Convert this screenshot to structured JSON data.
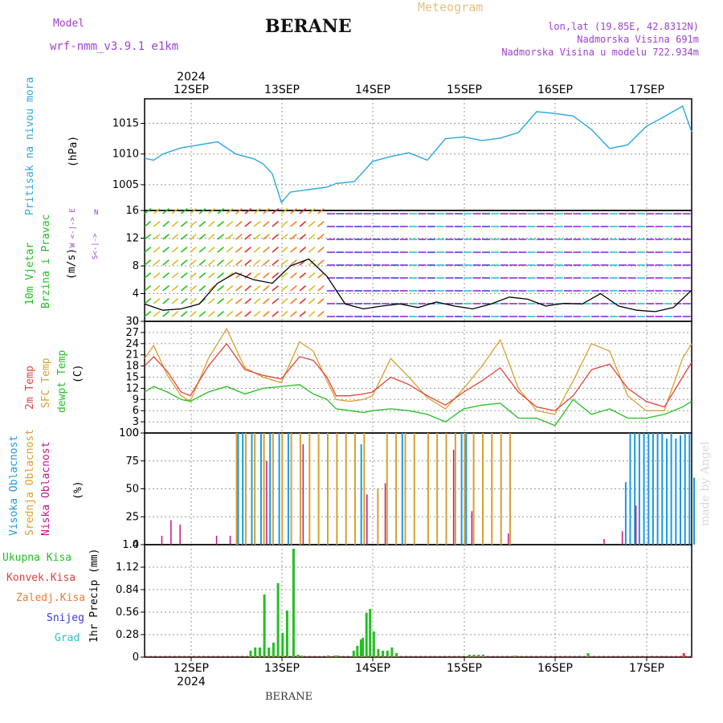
{
  "header": {
    "model_label": "Model",
    "model_name": "wrf-nmm_v3.9.1 e1km",
    "title": "BERANE",
    "meteogram_label": "Meteogram",
    "lonlat": "lon,lat (19.85E, 42.8312N)",
    "elevation": "Nadmorska Visina 691m",
    "model_elevation": "Nadmorska Visina u modelu 722.934m",
    "footer_title": "BERANE",
    "watermark": "made by Angel"
  },
  "colors": {
    "pressure": "#29a8e0",
    "temp2m": "#e0443c",
    "sfc": "#d8a030",
    "dewpt": "#22c022",
    "high_cloud": "#1a9ae0",
    "mid_cloud": "#d8a030",
    "low_cloud": "#c4148c",
    "total_precip": "#22c022",
    "conv_precip": "#e04040",
    "frozen": "#f07a30",
    "snow": "#3a3ad8",
    "graupel": "#22c8c0",
    "dark_label": "#a040d0"
  },
  "time_axis": {
    "year": "2024",
    "labels": [
      "12SEP",
      "13SEP",
      "14SEP",
      "15SEP",
      "16SEP",
      "17SEP"
    ]
  },
  "panels": {
    "pressure": {
      "label": "Pritisak na nivou mora",
      "unit": "(hPa)"
    },
    "wind": {
      "label1": "10m Vjetar",
      "label2": "Brzina i Pravac",
      "unit": "(m/s)",
      "compass_n": "N",
      "compass_ws": "W  <-|-> E",
      "compass_s": "S<-|->"
    },
    "temp": {
      "label1": "2m Temp",
      "label2": "SFC Temp",
      "label3": "dewpt Temp",
      "unit": "(C)"
    },
    "cloud": {
      "label1": "Visoka Oblacnost",
      "label2": "Srednja Oblacnost",
      "label3": "Niska Oblacnost",
      "unit": "(%)"
    },
    "precip": {
      "unit": "1hr Precip (mm)",
      "legend": [
        "Ukupna Kisa",
        "Konvek.Kisa",
        "Zaledj.Kisa",
        "Snijeg",
        "Grad"
      ]
    }
  },
  "chart_data": [
    {
      "type": "line",
      "title": "Pritisak na nivou mora",
      "ylabel": "(hPa)",
      "ylim": [
        1000.8,
        1019
      ],
      "yticks": [
        1005,
        1010,
        1015
      ],
      "x_days": [
        0,
        0.1,
        0.2,
        0.4,
        0.6,
        0.8,
        1.0,
        1.2,
        1.3,
        1.4,
        1.5,
        1.6,
        1.8,
        2.0,
        2.1,
        2.3,
        2.5,
        2.7,
        2.9,
        3.1,
        3.3,
        3.5,
        3.7,
        3.9,
        4.1,
        4.3,
        4.5,
        4.7,
        4.9,
        5.1,
        5.3,
        5.5,
        5.7,
        5.9,
        6.0
      ],
      "series": [
        {
          "name": "Pritisak na nivou mora",
          "values": [
            1009.3,
            1009.0,
            1010.0,
            1011.0,
            1011.5,
            1012.0,
            1010.0,
            1009.2,
            1008.4,
            1006.8,
            1002.1,
            1003.8,
            1004.2,
            1004.6,
            1005.2,
            1005.5,
            1008.8,
            1009.6,
            1010.2,
            1009.0,
            1012.5,
            1012.8,
            1012.2,
            1012.6,
            1013.5,
            1016.9,
            1016.6,
            1016.2,
            1014.0,
            1010.9,
            1011.5,
            1014.5,
            1016.1,
            1017.8,
            1013.6
          ]
        }
      ]
    },
    {
      "type": "line",
      "title": "10m Vjetar Brzina i Pravac",
      "ylabel": "(m/s)",
      "ylim": [
        0,
        16
      ],
      "yticks": [
        0,
        4,
        8,
        12,
        16
      ],
      "x_days": [
        0,
        0.2,
        0.4,
        0.6,
        0.8,
        1.0,
        1.2,
        1.4,
        1.6,
        1.8,
        2.0,
        2.2,
        2.4,
        2.6,
        2.8,
        3.0,
        3.2,
        3.4,
        3.6,
        3.8,
        4.0,
        4.2,
        4.4,
        4.6,
        4.8,
        5.0,
        5.2,
        5.4,
        5.6,
        5.8,
        6.0
      ],
      "series": [
        {
          "name": "10m Vjetar",
          "values": [
            2.5,
            1.6,
            1.8,
            2.5,
            5.5,
            7.0,
            6.0,
            5.5,
            8.0,
            9.0,
            6.5,
            2.5,
            1.8,
            2.2,
            2.5,
            2.0,
            2.8,
            2.2,
            1.8,
            2.5,
            3.5,
            3.2,
            2.2,
            2.6,
            2.5,
            4.0,
            2.2,
            1.6,
            1.4,
            2.0,
            4.5
          ]
        }
      ]
    },
    {
      "type": "line",
      "title": "2m Temp / SFC Temp / dewpt Temp",
      "ylabel": "(C)",
      "ylim": [
        0,
        30
      ],
      "yticks": [
        0,
        3,
        6,
        9,
        12,
        15,
        18,
        21,
        24,
        27,
        30
      ],
      "x_days": [
        0,
        0.1,
        0.25,
        0.4,
        0.5,
        0.7,
        0.9,
        1.1,
        1.3,
        1.5,
        1.7,
        1.85,
        2.0,
        2.1,
        2.25,
        2.4,
        2.5,
        2.7,
        2.9,
        3.1,
        3.3,
        3.5,
        3.7,
        3.9,
        4.1,
        4.3,
        4.5,
        4.7,
        4.9,
        5.1,
        5.3,
        5.5,
        5.7,
        5.9,
        6.0
      ],
      "series": [
        {
          "name": "2m Temp",
          "values": [
            18,
            20.5,
            16.5,
            11,
            10,
            18,
            24,
            17,
            15.5,
            14.5,
            20.5,
            19.5,
            15,
            10,
            10,
            10.5,
            11,
            15,
            13,
            10,
            7.5,
            11,
            14,
            17.5,
            11,
            7,
            6,
            10,
            17,
            18.5,
            12,
            8.5,
            7,
            15,
            19
          ]
        },
        {
          "name": "SFC Temp",
          "values": [
            20,
            23.5,
            15.5,
            10,
            8.5,
            20,
            28,
            17.5,
            15,
            13.5,
            24.5,
            22,
            14,
            9,
            8.5,
            9,
            10,
            20,
            15,
            9.5,
            6.5,
            12,
            18,
            25,
            12,
            6,
            5,
            14,
            24,
            22,
            10,
            6,
            6,
            20,
            24
          ]
        },
        {
          "name": "dewpt Temp",
          "values": [
            11,
            12.5,
            11,
            9,
            8.5,
            11,
            12.5,
            10.5,
            12,
            12.5,
            13,
            10.5,
            9,
            6.5,
            6,
            5.5,
            6,
            6.5,
            6,
            5,
            3,
            6.5,
            7.5,
            8,
            4,
            4,
            2,
            9,
            5,
            6.5,
            4,
            4,
            5,
            7,
            8.5
          ]
        }
      ]
    },
    {
      "type": "bar",
      "title": "Visoka / Srednja / Niska Oblacnost",
      "ylabel": "(%)",
      "ylim": [
        0,
        100
      ],
      "yticks": [
        0,
        25,
        50,
        75,
        100
      ],
      "series": [
        {
          "name": "Visoka Oblacnost",
          "x_days": [
            1.0,
            1.05,
            1.15,
            1.25,
            1.35,
            1.45,
            1.55,
            2.35,
            2.8,
            3.45,
            3.5,
            5.25,
            5.3,
            5.35,
            5.4,
            5.45,
            5.5,
            5.55,
            5.6,
            5.65,
            5.7,
            5.75,
            5.8,
            5.85,
            5.9,
            5.95,
            6.0
          ],
          "values": [
            100,
            100,
            100,
            100,
            100,
            100,
            100,
            90,
            100,
            100,
            100,
            56,
            100,
            100,
            100,
            100,
            100,
            100,
            100,
            100,
            95,
            100,
            95,
            98,
            100,
            100,
            60
          ]
        },
        {
          "name": "Srednja Oblacnost",
          "x_days": [
            1.0,
            1.1,
            1.2,
            1.3,
            1.4,
            1.5,
            1.6,
            1.7,
            1.8,
            1.9,
            2.0,
            2.1,
            2.2,
            2.3,
            2.4,
            2.55,
            2.65,
            2.75,
            2.85,
            2.95,
            3.1,
            3.2,
            3.3,
            3.4,
            3.5,
            3.6,
            3.7,
            3.8,
            3.9,
            4.0
          ],
          "values": [
            100,
            100,
            100,
            100,
            100,
            100,
            100,
            100,
            100,
            100,
            100,
            100,
            100,
            100,
            100,
            50,
            100,
            100,
            100,
            100,
            100,
            100,
            100,
            100,
            100,
            100,
            100,
            100,
            100,
            100
          ]
        },
        {
          "name": "Niska Oblacnost",
          "x_days": [
            0.2,
            0.3,
            0.4,
            0.8,
            0.95,
            1.35,
            1.75,
            2.45,
            2.65,
            3.4,
            3.6,
            4.0,
            5.05,
            5.25,
            5.4
          ],
          "values": [
            8,
            22,
            18,
            8,
            8,
            75,
            90,
            45,
            55,
            85,
            30,
            10,
            5,
            12,
            35
          ]
        }
      ]
    },
    {
      "type": "bar",
      "title": "1hr Precip",
      "ylabel": "1hr Precip (mm)",
      "ylim": [
        0,
        1.4
      ],
      "yticks": [
        0,
        0.28,
        0.56,
        0.84,
        1.12,
        1.4
      ],
      "series": [
        {
          "name": "Ukupna Kisa",
          "x_days": [
            1.15,
            1.2,
            1.25,
            1.3,
            1.35,
            1.4,
            1.45,
            1.5,
            1.55,
            1.62,
            1.67,
            1.71,
            2.0,
            2.08,
            2.1,
            2.28,
            2.32,
            2.36,
            2.38,
            2.42,
            2.46,
            2.5,
            2.55,
            2.6,
            2.65,
            2.7,
            2.75,
            3.55,
            3.6,
            3.65,
            3.7,
            4.05,
            4.85
          ],
          "values": [
            0.08,
            0.12,
            0.12,
            0.78,
            0.12,
            0.18,
            0.92,
            0.3,
            0.58,
            1.35,
            0.03,
            0.02,
            0.02,
            0.02,
            0.02,
            0.08,
            0.14,
            0.22,
            0.24,
            0.55,
            0.6,
            0.32,
            0.1,
            0.08,
            0.08,
            0.12,
            0.05,
            0.03,
            0.03,
            0.03,
            0.03,
            0.02,
            0.05
          ]
        },
        {
          "name": "Konvek.Kisa",
          "x_days": [
            5.9
          ],
          "values": [
            0.05
          ]
        },
        {
          "name": "Zaledj.Kisa",
          "x_days": [],
          "values": []
        },
        {
          "name": "Snijeg",
          "x_days": [],
          "values": []
        },
        {
          "name": "Grad",
          "x_days": [],
          "values": []
        }
      ]
    }
  ]
}
